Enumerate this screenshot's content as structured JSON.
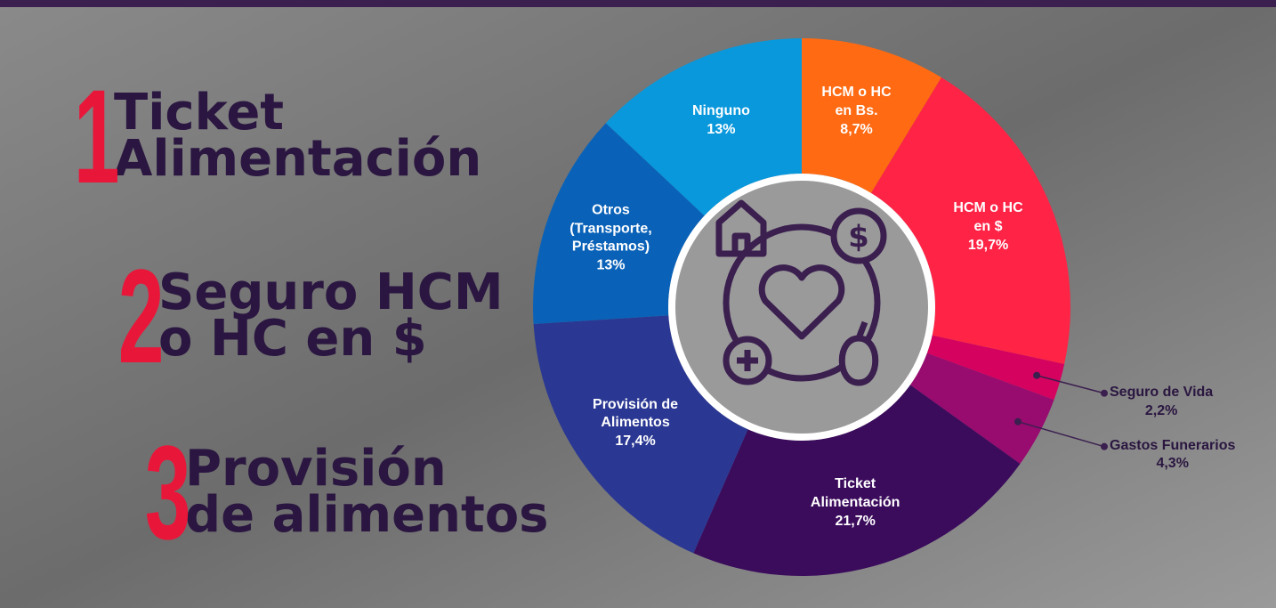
{
  "ranking": [
    {
      "number": 1,
      "text": "Ticket\nAlimentación"
    },
    {
      "number": 2,
      "text": "Seguro HCM\no HC en $"
    },
    {
      "number": 3,
      "text": "Provisión\nde alimentos"
    }
  ],
  "chart_data": {
    "type": "pie",
    "categories": [
      "HCM o HC\nen Bs.",
      "HCM o HC\nen $",
      "Seguro de Vida",
      "Gastos Funerarios",
      "Ticket\nAlimentación",
      "Provisión de\nAlimentos",
      "Otros\n(Transporte,\nPréstamos)",
      "Ninguno"
    ],
    "values": [
      8.7,
      19.7,
      2.2,
      4.3,
      21.7,
      17.4,
      13,
      13
    ],
    "value_labels": [
      "8,7%",
      "19,7%",
      "2,2%",
      "4,3%",
      "21,7%",
      "17,4%",
      "13%",
      "13%"
    ],
    "colors": [
      "#ff6a12",
      "#ff2346",
      "#d5025f",
      "#980b6f",
      "#3b0b5c",
      "#2b3893",
      "#0a62b8",
      "#0998dc"
    ]
  }
}
